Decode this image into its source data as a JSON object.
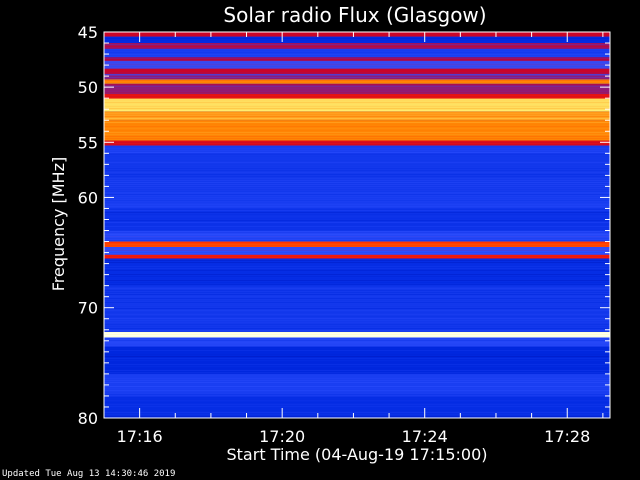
{
  "chart_data": {
    "type": "heatmap",
    "title": "Solar radio Flux (Glasgow)",
    "ylabel": "Frequency [MHz]",
    "xlabel": "Start Time (04-Aug-19 17:15:00)",
    "ylim": [
      45,
      80
    ],
    "y_direction": "downward",
    "yticks": [
      45,
      50,
      55,
      60,
      70,
      80
    ],
    "xticks": [
      "17:16",
      "17:20",
      "17:24",
      "17:28"
    ],
    "x_tick_minutes": [
      1,
      5,
      9,
      13
    ],
    "x_range_minutes": [
      0,
      14.2
    ],
    "colormap": [
      "#000090",
      "#0028e0",
      "#3050ff",
      "#c00030",
      "#ff2000",
      "#ff8000",
      "#ffff80",
      "#ffffff"
    ],
    "grid": false,
    "bands": [
      {
        "f_start": 45.0,
        "f_end": 45.4,
        "intensity": 0.45
      },
      {
        "f_start": 45.4,
        "f_end": 46.0,
        "intensity": 0.15
      },
      {
        "f_start": 46.0,
        "f_end": 46.5,
        "intensity": 0.4
      },
      {
        "f_start": 46.5,
        "f_end": 47.3,
        "intensity": 0.22
      },
      {
        "f_start": 47.3,
        "f_end": 47.6,
        "intensity": 0.42
      },
      {
        "f_start": 47.6,
        "f_end": 48.3,
        "intensity": 0.3
      },
      {
        "f_start": 48.3,
        "f_end": 48.8,
        "intensity": 0.45
      },
      {
        "f_start": 48.8,
        "f_end": 49.3,
        "intensity": 0.35
      },
      {
        "f_start": 49.3,
        "f_end": 49.7,
        "intensity": 0.72
      },
      {
        "f_start": 49.7,
        "f_end": 50.6,
        "intensity": 0.38
      },
      {
        "f_start": 50.6,
        "f_end": 51.0,
        "intensity": 0.52
      },
      {
        "f_start": 51.0,
        "f_end": 52.2,
        "intensity": 0.82
      },
      {
        "f_start": 52.2,
        "f_end": 53.0,
        "intensity": 0.75
      },
      {
        "f_start": 53.0,
        "f_end": 54.8,
        "intensity": 0.72
      },
      {
        "f_start": 54.8,
        "f_end": 55.3,
        "intensity": 0.5
      },
      {
        "f_start": 55.3,
        "f_end": 56.0,
        "intensity": 0.22
      },
      {
        "f_start": 56.0,
        "f_end": 59.5,
        "intensity": 0.2
      },
      {
        "f_start": 59.5,
        "f_end": 61.0,
        "intensity": 0.22
      },
      {
        "f_start": 61.0,
        "f_end": 63.0,
        "intensity": 0.18
      },
      {
        "f_start": 63.0,
        "f_end": 64.0,
        "intensity": 0.25
      },
      {
        "f_start": 64.0,
        "f_end": 64.5,
        "intensity": 0.62
      },
      {
        "f_start": 64.5,
        "f_end": 65.2,
        "intensity": 0.28
      },
      {
        "f_start": 65.2,
        "f_end": 65.5,
        "intensity": 0.55
      },
      {
        "f_start": 65.5,
        "f_end": 68.0,
        "intensity": 0.16
      },
      {
        "f_start": 68.0,
        "f_end": 72.2,
        "intensity": 0.2
      },
      {
        "f_start": 72.2,
        "f_end": 72.7,
        "intensity": 0.98
      },
      {
        "f_start": 72.7,
        "f_end": 73.5,
        "intensity": 0.25
      },
      {
        "f_start": 73.5,
        "f_end": 76.0,
        "intensity": 0.14
      },
      {
        "f_start": 76.0,
        "f_end": 78.0,
        "intensity": 0.22
      },
      {
        "f_start": 78.0,
        "f_end": 80.0,
        "intensity": 0.16
      }
    ]
  },
  "footer": {
    "updated": "Updated Tue Aug 13 14:30:46 2019"
  }
}
